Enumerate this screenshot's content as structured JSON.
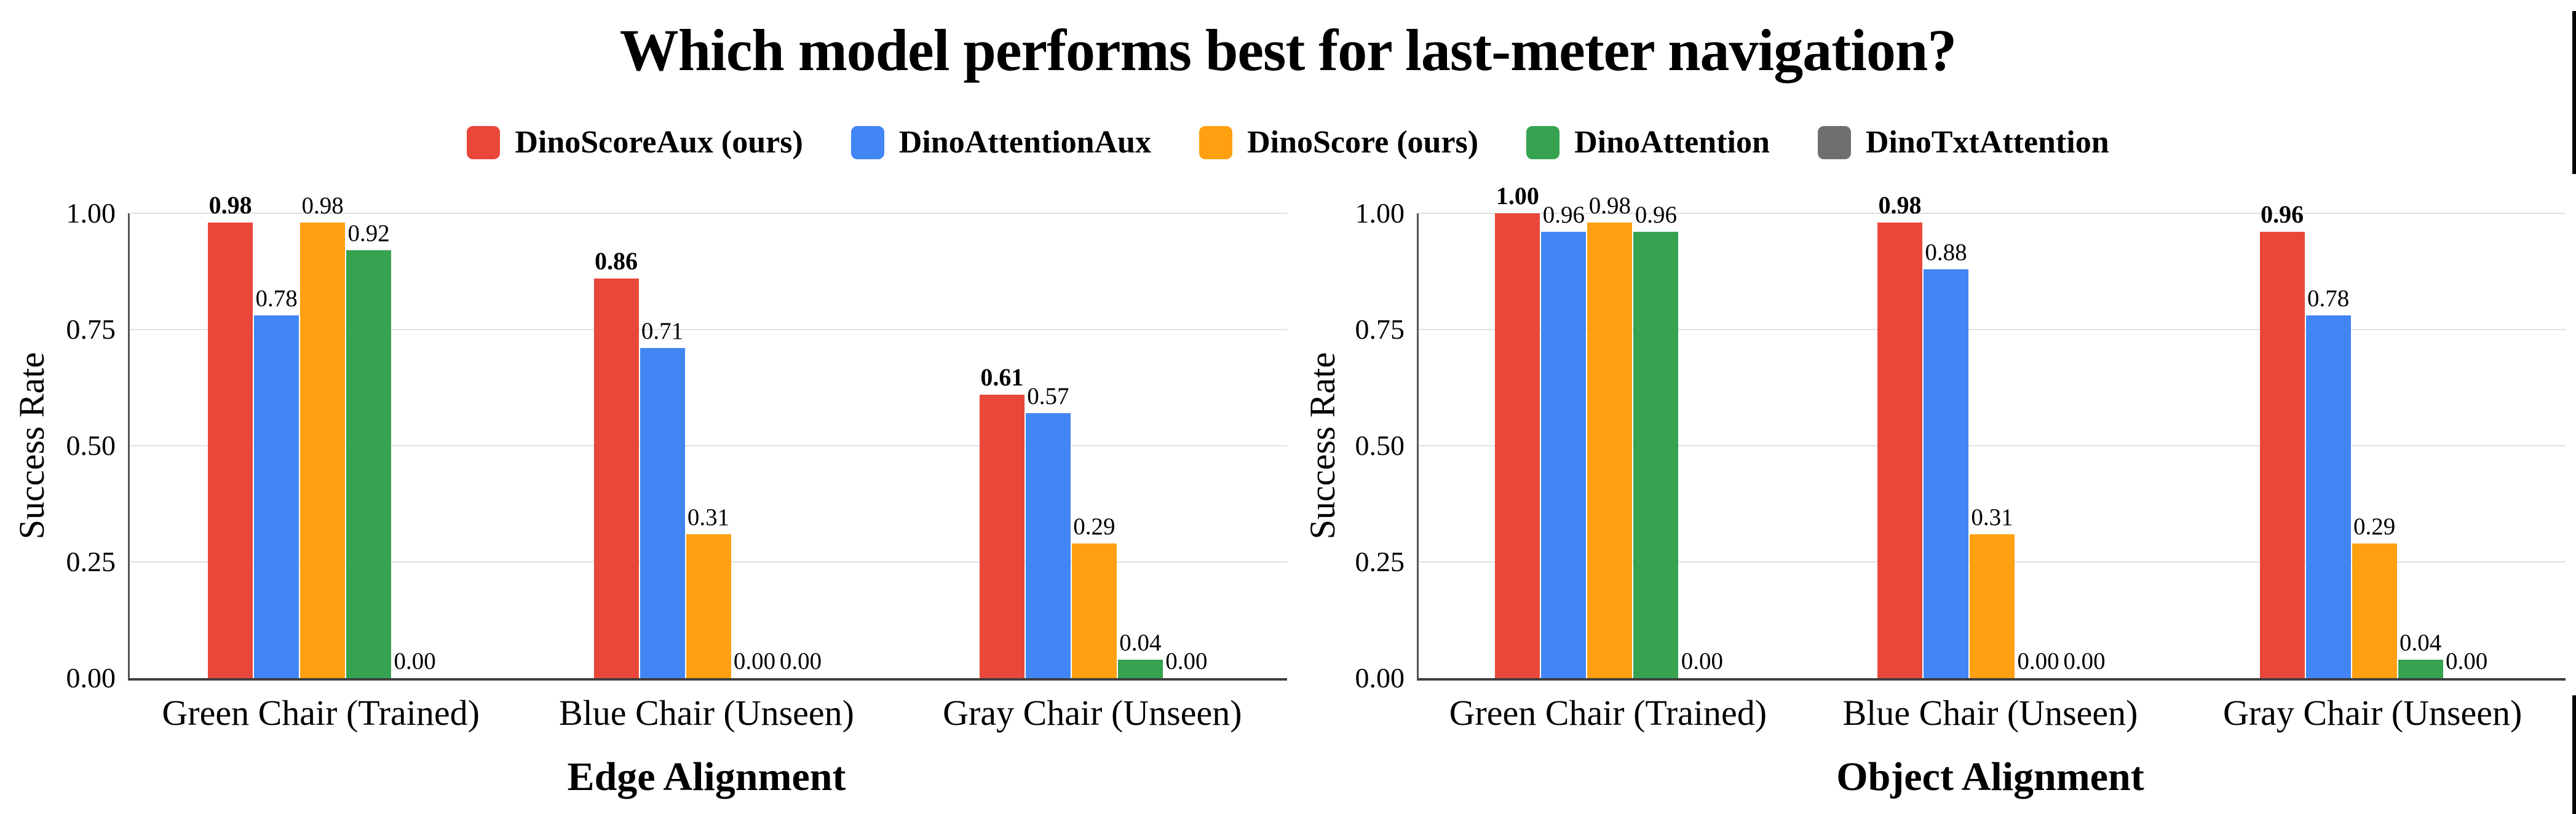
{
  "title": "Which model performs best for last-meter navigation?",
  "legend": [
    {
      "label": "DinoScoreAux (ours)",
      "color": "#e8473a"
    },
    {
      "label": "DinoAttentionAux",
      "color": "#4285f4"
    },
    {
      "label": "DinoScore (ours)",
      "color": "#ffa011"
    },
    {
      "label": "DinoAttention",
      "color": "#35a34f"
    },
    {
      "label": "DinoTxtAttention",
      "color": "#6f6f6f"
    }
  ],
  "chart_data": [
    {
      "type": "bar",
      "xlabel": "Edge Alignment",
      "ylabel": "Success Rate",
      "ylim": [
        0,
        1.0
      ],
      "grid": true,
      "legend_position": "top",
      "yticks": [
        0.0,
        0.25,
        0.5,
        0.75,
        1.0
      ],
      "ytick_labels": [
        "0.00",
        "0.25",
        "0.50",
        "0.75",
        "1.00"
      ],
      "categories": [
        "Green Chair (Trained)",
        "Blue Chair (Unseen)",
        "Gray Chair (Unseen)"
      ],
      "series": [
        {
          "name": "DinoScoreAux (ours)",
          "color": "#e8473a",
          "bold_value_labels": true,
          "values": [
            0.98,
            0.86,
            0.61
          ]
        },
        {
          "name": "DinoAttentionAux",
          "color": "#4285f4",
          "bold_value_labels": false,
          "values": [
            0.78,
            0.71,
            0.57
          ]
        },
        {
          "name": "DinoScore (ours)",
          "color": "#ffa011",
          "bold_value_labels": false,
          "values": [
            0.98,
            0.31,
            0.29
          ]
        },
        {
          "name": "DinoAttention",
          "color": "#35a34f",
          "bold_value_labels": false,
          "values": [
            0.92,
            0.0,
            0.04
          ]
        },
        {
          "name": "DinoTxtAttention",
          "color": "#6f6f6f",
          "bold_value_labels": false,
          "values": [
            0.0,
            0.0,
            0.0
          ]
        }
      ]
    },
    {
      "type": "bar",
      "xlabel": "Object Alignment",
      "ylabel": "Success Rate",
      "ylim": [
        0,
        1.0
      ],
      "grid": true,
      "legend_position": "top",
      "yticks": [
        0.0,
        0.25,
        0.5,
        0.75,
        1.0
      ],
      "ytick_labels": [
        "0.00",
        "0.25",
        "0.50",
        "0.75",
        "1.00"
      ],
      "categories": [
        "Green Chair (Trained)",
        "Blue Chair (Unseen)",
        "Gray Chair (Unseen)"
      ],
      "series": [
        {
          "name": "DinoScoreAux (ours)",
          "color": "#e8473a",
          "bold_value_labels": true,
          "values": [
            1.0,
            0.98,
            0.96
          ]
        },
        {
          "name": "DinoAttentionAux",
          "color": "#4285f4",
          "bold_value_labels": false,
          "values": [
            0.96,
            0.88,
            0.78
          ]
        },
        {
          "name": "DinoScore (ours)",
          "color": "#ffa011",
          "bold_value_labels": false,
          "values": [
            0.98,
            0.31,
            0.29
          ]
        },
        {
          "name": "DinoAttention",
          "color": "#35a34f",
          "bold_value_labels": false,
          "values": [
            0.96,
            0.0,
            0.04
          ]
        },
        {
          "name": "DinoTxtAttention",
          "color": "#6f6f6f",
          "bold_value_labels": false,
          "values": [
            0.0,
            0.0,
            0.0
          ]
        }
      ]
    }
  ]
}
